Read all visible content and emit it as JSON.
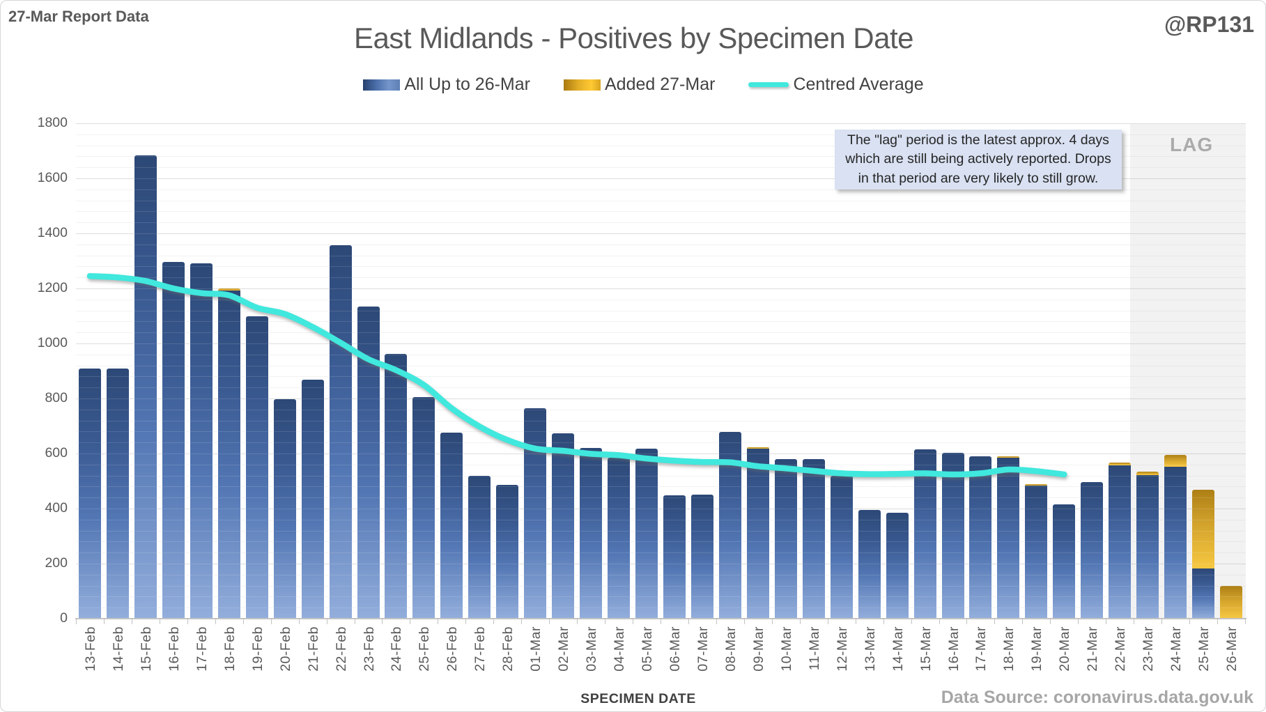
{
  "header": {
    "report_label": "27-Mar Report Data",
    "handle": "@RP131"
  },
  "title": "East Midlands - Positives by Specimen Date",
  "legend": {
    "items": [
      {
        "label": "All Up to 26-Mar",
        "swatch": "blue-gradient-bar"
      },
      {
        "label": "Added 27-Mar",
        "swatch": "gold-gradient-bar"
      },
      {
        "label": "Centred Average",
        "swatch": "cyan-line"
      }
    ]
  },
  "annotation": {
    "line1": "The \"lag\" period is the latest approx. 4 days",
    "line2": "which are still being actively reported. Drops",
    "line3": "in that period are very likely to still grow."
  },
  "lag_region_label": "LAG",
  "x_axis_title": "SPECIMEN DATE",
  "data_source": "Data Source: coronavirus.data.gov.uk",
  "colors": {
    "bar_blue_top": "#2C4876",
    "bar_blue_bottom": "#93AEDC",
    "bar_gold_top": "#AD7F15",
    "bar_gold_bottom": "#F7C842",
    "average_line": "#40E8DD",
    "title_text": "#595959",
    "axis_text": "#595959",
    "lag_band": "#ECECEC",
    "annotation_fill": "#D9E1F2"
  },
  "chart_data": {
    "type": "bar",
    "stacked": true,
    "title": "East Midlands - Positives by Specimen Date",
    "xlabel": "SPECIMEN DATE",
    "ylabel": "",
    "ylim": [
      0,
      1800
    ],
    "y_major_unit": 200,
    "y_minor_unit": 40,
    "grid": "on",
    "legend_position": "top",
    "categories": [
      "13-Feb",
      "14-Feb",
      "15-Feb",
      "16-Feb",
      "17-Feb",
      "18-Feb",
      "19-Feb",
      "20-Feb",
      "21-Feb",
      "22-Feb",
      "23-Feb",
      "24-Feb",
      "25-Feb",
      "26-Feb",
      "27-Feb",
      "28-Feb",
      "01-Mar",
      "02-Mar",
      "03-Mar",
      "04-Mar",
      "05-Mar",
      "06-Mar",
      "07-Mar",
      "08-Mar",
      "09-Mar",
      "10-Mar",
      "11-Mar",
      "12-Mar",
      "13-Mar",
      "14-Mar",
      "15-Mar",
      "16-Mar",
      "17-Mar",
      "18-Mar",
      "19-Mar",
      "20-Mar",
      "21-Mar",
      "22-Mar",
      "23-Mar",
      "24-Mar",
      "25-Mar",
      "26-Mar"
    ],
    "series": [
      {
        "name": "All Up to 26-Mar",
        "type": "bar",
        "values": [
          910,
          910,
          1683,
          1297,
          1290,
          1192,
          1100,
          798,
          868,
          1356,
          1135,
          963,
          804,
          677,
          520,
          486,
          765,
          674,
          620,
          585,
          617,
          448,
          450,
          678,
          618,
          580,
          580,
          520,
          395,
          384,
          614,
          602,
          590,
          585,
          483,
          414,
          497,
          557,
          522,
          551,
          182,
          0
        ]
      },
      {
        "name": "Added 27-Mar",
        "type": "bar",
        "values": [
          0,
          0,
          0,
          0,
          0,
          8,
          0,
          0,
          0,
          0,
          0,
          0,
          0,
          0,
          0,
          0,
          0,
          0,
          0,
          0,
          0,
          0,
          0,
          0,
          4,
          0,
          0,
          0,
          0,
          0,
          0,
          0,
          0,
          6,
          6,
          0,
          0,
          9,
          13,
          43,
          287,
          120
        ]
      },
      {
        "name": "Centred Average",
        "type": "line",
        "values": [
          1245,
          1240,
          1227,
          1200,
          1183,
          1175,
          1130,
          1107,
          1060,
          1003,
          943,
          903,
          849,
          764,
          698,
          649,
          618,
          610,
          599,
          594,
          582,
          574,
          569,
          568,
          554,
          546,
          537,
          528,
          525,
          526,
          528,
          524,
          528,
          542,
          536,
          524,
          null,
          null,
          null,
          null,
          null,
          null
        ]
      }
    ],
    "lag_region": {
      "label": "LAG",
      "categories": [
        "23-Mar",
        "24-Mar",
        "25-Mar",
        "26-Mar"
      ]
    }
  }
}
